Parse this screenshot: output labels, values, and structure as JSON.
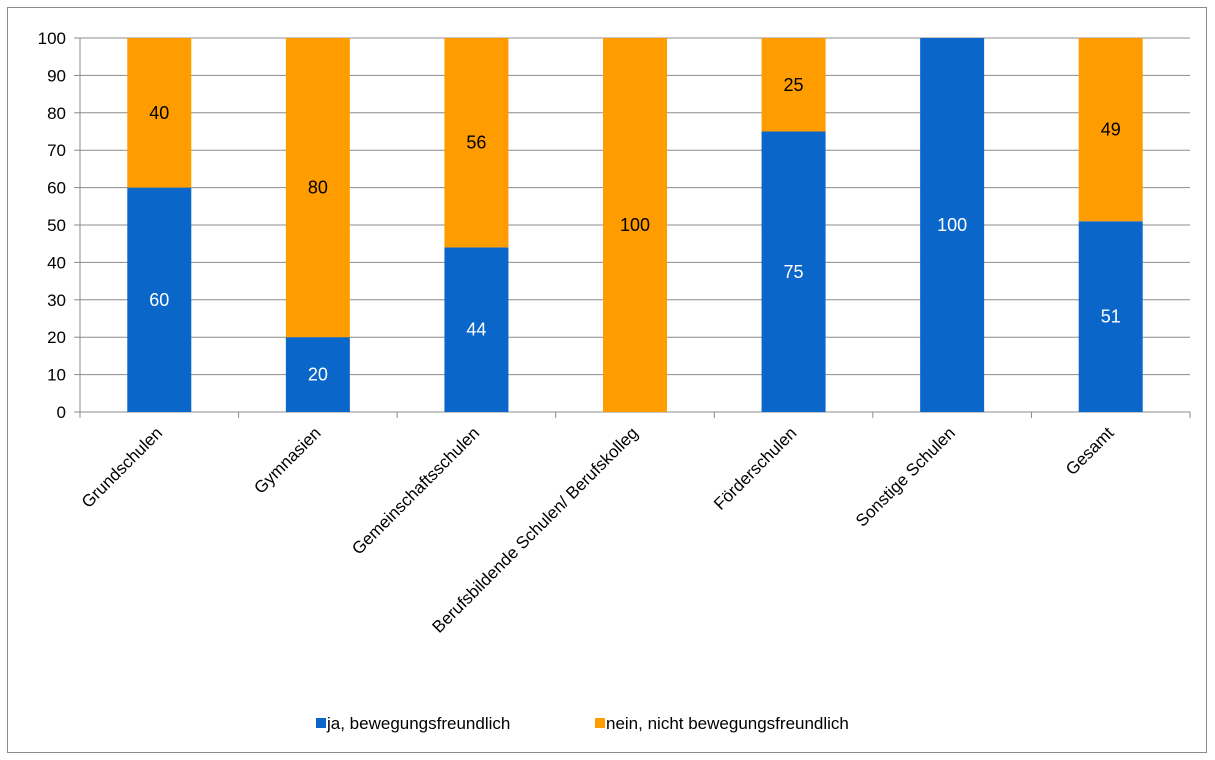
{
  "chart_data": {
    "type": "bar",
    "stacked": true,
    "categories": [
      "Grundschulen",
      "Gymnasien",
      "Gemeinschaftsschulen",
      "Berufsbildende Schulen/ Berufskolleg",
      "Förderschulen",
      "Sonstige Schulen",
      "Gesamt"
    ],
    "series": [
      {
        "name": "ja, bewegungsfreundlich",
        "color": "#0a66c9",
        "label_color": "#ffffff",
        "values": [
          60,
          20,
          44,
          0,
          75,
          100,
          51
        ],
        "labels": [
          "60",
          "20",
          "44",
          "",
          "75",
          "100",
          "51"
        ]
      },
      {
        "name": "nein, nicht bewegungsfreundlich",
        "color": "#ff9c00",
        "label_color": "#000000",
        "values": [
          40,
          80,
          56,
          100,
          25,
          0,
          49
        ],
        "labels": [
          "40",
          "80",
          "56",
          "100",
          "25",
          "",
          "49"
        ]
      }
    ],
    "ylim": [
      0,
      100
    ],
    "yticks": [
      "0",
      "10",
      "20",
      "30",
      "40",
      "50",
      "60",
      "70",
      "80",
      "90",
      "100"
    ],
    "grid": true,
    "legend": "bottom-center",
    "title": "",
    "xlabel": "",
    "ylabel": ""
  }
}
